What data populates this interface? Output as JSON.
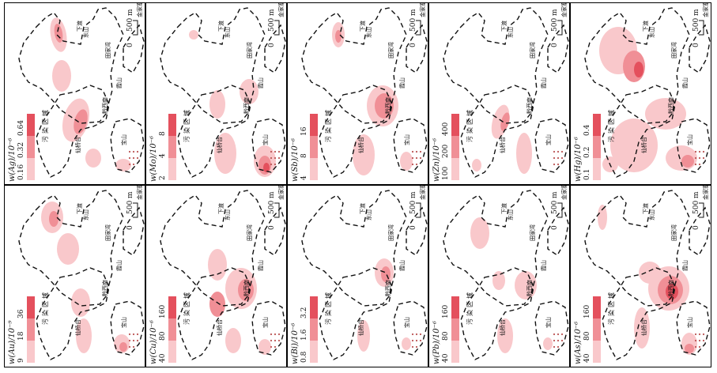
{
  "colors": {
    "light": "#f9c8cb",
    "mid": "#f08f96",
    "dark": "#e4505d",
    "boundary": "#111111"
  },
  "common": {
    "zone_label": "污染区域",
    "scale_label": "500 m",
    "scale_zero": "0",
    "place_names": {
      "jinjiazhai": "金家寨",
      "tianjiawan": "田家湾",
      "dongshan": "东山",
      "xiashan": "霞山",
      "qianxinan": "黔西南",
      "xianqiaotai": "仙桥台",
      "baoshan": "宝山",
      "xiadu": "下渡",
      "anzhang": "安章"
    }
  },
  "panels": [
    {
      "id": "ag",
      "label": "w(Ag)/10⁻⁶",
      "ticks": [
        "0.16",
        "0.32",
        "0.64"
      ]
    },
    {
      "id": "mo",
      "label": "w(Mo)/10⁻⁶",
      "ticks": [
        "2",
        "4",
        "8"
      ]
    },
    {
      "id": "sb",
      "label": "w(Sb)/10⁻⁶",
      "ticks": [
        "4",
        "8",
        "16"
      ]
    },
    {
      "id": "zn",
      "label": "w(Zn)/10⁻⁶",
      "ticks": [
        "100",
        "200",
        "400"
      ]
    },
    {
      "id": "hg",
      "label": "w(Hg)/10⁻⁶",
      "ticks": [
        "0.1",
        "0.2",
        "0.4"
      ]
    },
    {
      "id": "au",
      "label": "w(Au)/10⁻⁹",
      "ticks": [
        "9",
        "18",
        "36"
      ]
    },
    {
      "id": "cu",
      "label": "w(Cu)/10⁻⁶",
      "ticks": [
        "40",
        "80",
        "160"
      ]
    },
    {
      "id": "bi",
      "label": "w(Bi)/10⁻⁶",
      "ticks": [
        "0.8",
        "1.6",
        "3.2"
      ]
    },
    {
      "id": "pb",
      "label": "w(Pb)/10⁻⁶",
      "ticks": [
        "40",
        "80",
        "160"
      ]
    },
    {
      "id": "as",
      "label": "w(As)/10⁻⁶",
      "ticks": [
        "40",
        "80",
        "160"
      ]
    }
  ]
}
